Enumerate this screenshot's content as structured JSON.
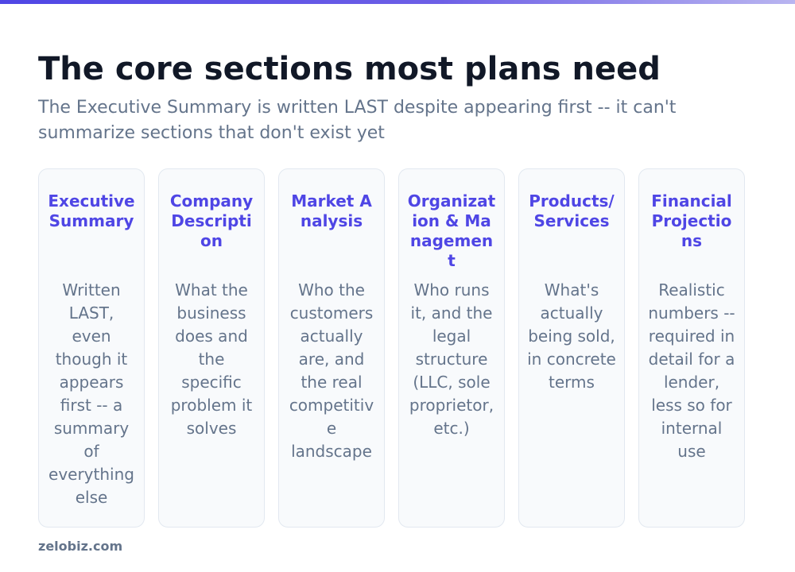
{
  "title": "The core sections most plans need",
  "subtitle": "The Executive Summary is written LAST despite appearing first -- it can't summarize sections that don't exist yet",
  "sections": [
    {
      "name": "Executive Summary",
      "description": "Written LAST, even though it appears first -- a summary of everything else"
    },
    {
      "name": "Company Description",
      "description": "What the business does and the specific problem it solves"
    },
    {
      "name": "Market Analysis",
      "description": "Who the customers actually are, and the real competitive landscape"
    },
    {
      "name": "Organization & Management",
      "description": "Who runs it, and the legal structure (LLC, sole proprietor, etc.)"
    },
    {
      "name": "Products/Services",
      "description": "What's actually being sold, in concrete terms"
    },
    {
      "name": "Financial Projections",
      "description": "Realistic numbers -- required in detail for a lender, less so for internal use"
    }
  ],
  "footer": "zelobiz.com",
  "colors": {
    "accent": "#4f46e5",
    "title": "#111827",
    "muted": "#64748b",
    "card_bg": "#f8fafc",
    "card_border": "#e2e8f0"
  }
}
